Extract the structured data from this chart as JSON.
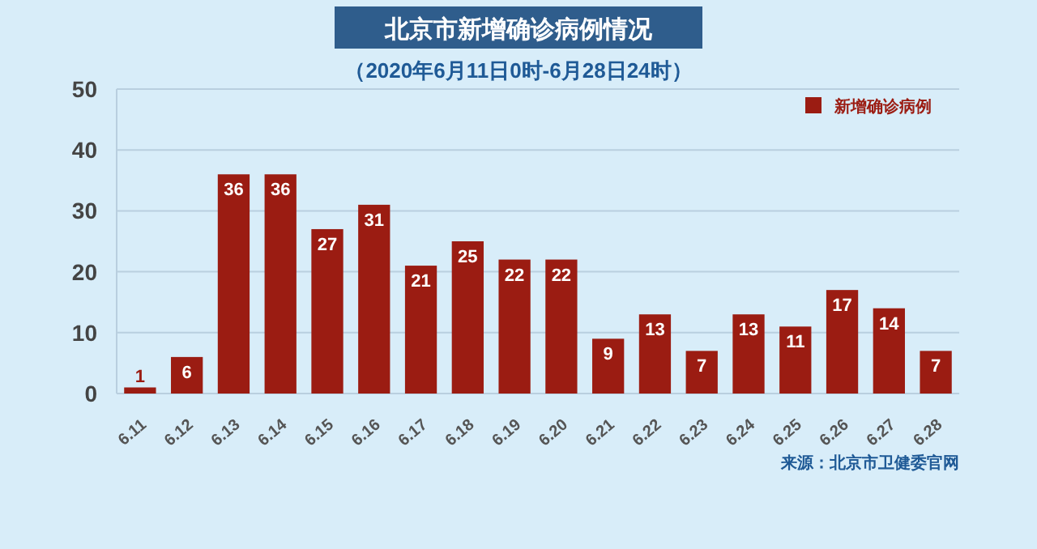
{
  "chart_data": {
    "type": "bar",
    "title": "北京市新增确诊病例情况",
    "subtitle": "（2020年6月11日0时-6月28日24时）",
    "categories": [
      "6.11",
      "6.12",
      "6.13",
      "6.14",
      "6.15",
      "6.16",
      "6.17",
      "6.18",
      "6.19",
      "6.20",
      "6.21",
      "6.22",
      "6.23",
      "6.24",
      "6.25",
      "6.26",
      "6.27",
      "6.28"
    ],
    "series": [
      {
        "name": "新增确诊病例",
        "color": "#9b1c12",
        "values": [
          1,
          6,
          36,
          36,
          27,
          31,
          21,
          25,
          22,
          22,
          9,
          13,
          7,
          13,
          11,
          17,
          14,
          7
        ]
      }
    ],
    "ylim": [
      0,
      50
    ],
    "yticks": [
      0,
      10,
      20,
      30,
      40,
      50
    ],
    "grid": "y",
    "legend": "top right",
    "data_labels": true,
    "annotations": [
      "来源：北京市卫健委官网"
    ]
  }
}
